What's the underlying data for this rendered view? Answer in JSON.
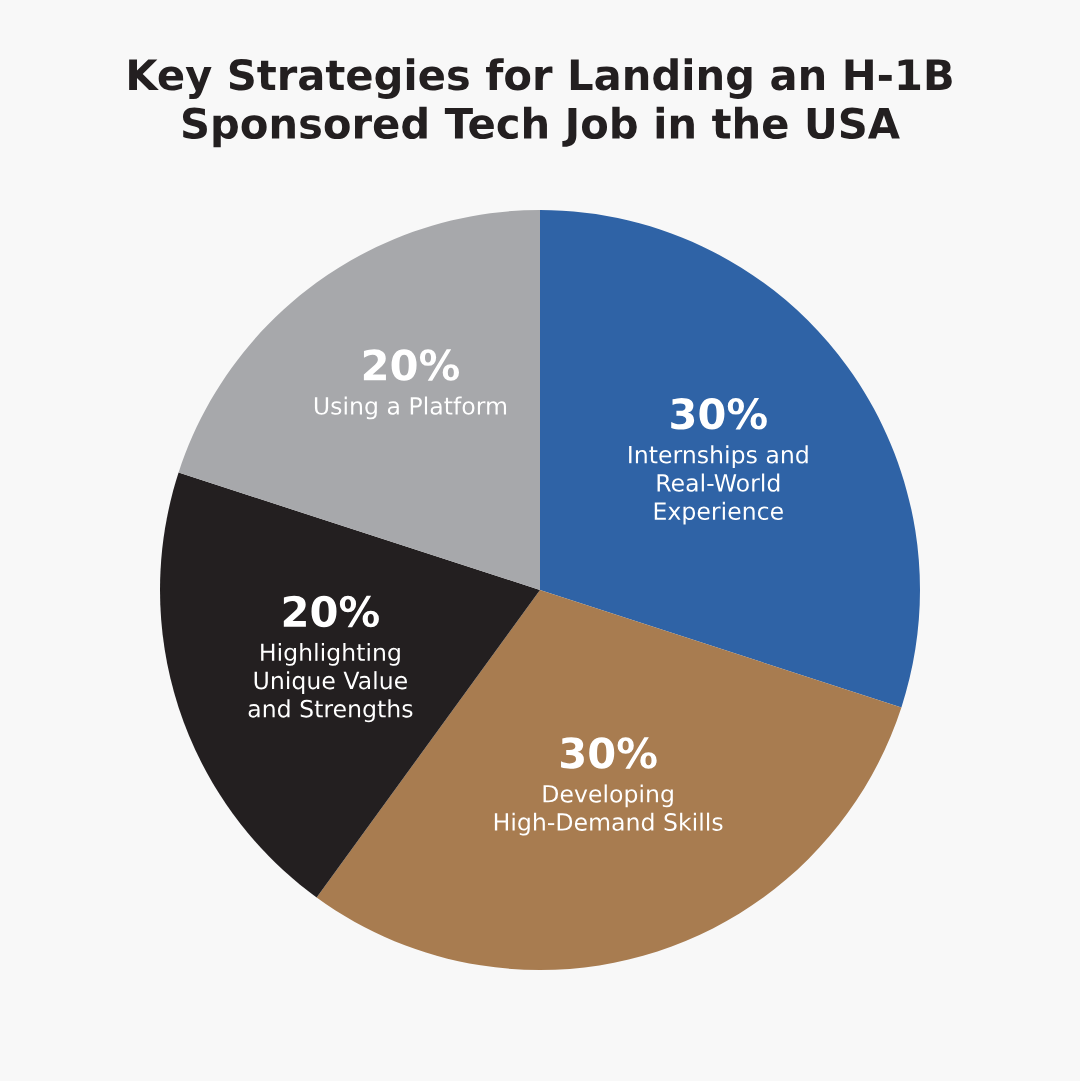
{
  "chart_data": {
    "type": "pie",
    "title": "Key Strategies for Landing an H-1B\nSponsored Tech Job in the USA",
    "categories": [
      "Internships and\nReal-World\nExperience",
      "Developing\nHigh-Demand Skills",
      "Highlighting\nUnique Value\nand Strengths",
      "Using a Platform"
    ],
    "values": [
      30,
      30,
      20,
      20
    ],
    "value_labels": [
      "30%",
      "30%",
      "20%",
      "20%"
    ],
    "colors": [
      "#2f63a6",
      "#a87c50",
      "#231f20",
      "#a7a8ab"
    ],
    "legend": false
  }
}
